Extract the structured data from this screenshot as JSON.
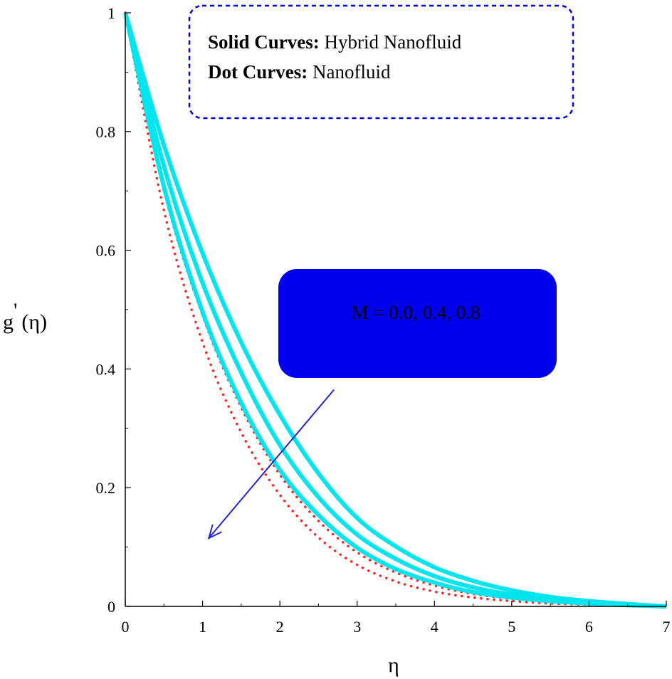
{
  "chart_data": {
    "type": "line",
    "title": "",
    "xlabel": "η",
    "ylabel_main": "g",
    "ylabel_super": "'",
    "ylabel_arg": "(η)",
    "xlim": [
      0,
      7
    ],
    "ylim": [
      0,
      1
    ],
    "x_ticks": [
      "0",
      "1",
      "2",
      "3",
      "4",
      "5",
      "6",
      "7"
    ],
    "y_ticks": [
      "0",
      "0.2",
      "0.4",
      "0.6",
      "0.8",
      "1"
    ],
    "grid": false,
    "legend": {
      "placement": "top-center",
      "line1_bold": "Solid Curves:",
      "line1_text": " Hybrid Nanofluid",
      "line2_bold": "Dot Curves:",
      "line2_text": " Nanofluid"
    },
    "annotation": {
      "text": "M = 0.0, 0.4, 0.8",
      "arrow_from": [
        2.7,
        0.365
      ],
      "arrow_to": [
        1.08,
        0.115
      ]
    },
    "colors": {
      "solid": "#00e5ee",
      "dotted": "#ff2020",
      "annotation_box": "#0000ee",
      "legend_border": "#0000ee",
      "arrow": "#2424d8"
    },
    "series": [
      {
        "style": "solid",
        "x": [
          0,
          0.5,
          1,
          1.5,
          2,
          2.5,
          3,
          3.5,
          4,
          4.5,
          5,
          5.5,
          6,
          6.5,
          7
        ],
        "y": [
          1,
          0.777,
          0.595,
          0.445,
          0.323,
          0.224,
          0.149,
          0.101,
          0.066,
          0.043,
          0.027,
          0.016,
          0.009,
          0.004,
          0
        ]
      },
      {
        "style": "solid",
        "x": [
          0,
          0.5,
          1,
          1.5,
          2,
          2.5,
          3,
          3.5,
          4,
          4.5,
          5,
          5.5,
          6,
          6.5,
          7
        ],
        "y": [
          1,
          0.742,
          0.545,
          0.394,
          0.272,
          0.184,
          0.121,
          0.08,
          0.051,
          0.032,
          0.02,
          0.012,
          0.006,
          0.003,
          0
        ]
      },
      {
        "style": "solid",
        "x": [
          0,
          0.5,
          1,
          1.5,
          2,
          2.5,
          3,
          3.5,
          4,
          4.5,
          5,
          5.5,
          6,
          6.5,
          7
        ],
        "y": [
          1,
          0.707,
          0.496,
          0.343,
          0.23,
          0.154,
          0.099,
          0.063,
          0.04,
          0.024,
          0.015,
          0.009,
          0.005,
          0.002,
          0
        ]
      },
      {
        "style": "dotted",
        "x": [
          0,
          0.5,
          1,
          1.5,
          2,
          2.5,
          3,
          3.5,
          4,
          4.5,
          5,
          5.5,
          6,
          6.5,
          7
        ],
        "y": [
          1,
          0.74,
          0.545,
          0.395,
          0.272,
          0.183,
          0.122,
          0.079,
          0.05,
          0.031,
          0.019,
          0.011,
          0.006,
          0.003,
          0
        ]
      },
      {
        "style": "dotted",
        "x": [
          0,
          0.5,
          1,
          1.5,
          2,
          2.5,
          3,
          3.5,
          4,
          4.5,
          5,
          5.5,
          6,
          6.5,
          7
        ],
        "y": [
          1,
          0.7,
          0.49,
          0.335,
          0.222,
          0.144,
          0.091,
          0.057,
          0.035,
          0.021,
          0.013,
          0.007,
          0.004,
          0.002,
          0
        ]
      },
      {
        "style": "dotted",
        "x": [
          0,
          0.5,
          1,
          1.5,
          2,
          2.5,
          3,
          3.5,
          4,
          4.5,
          5,
          5.5,
          6,
          6.5,
          7
        ],
        "y": [
          1,
          0.667,
          0.445,
          0.293,
          0.188,
          0.116,
          0.07,
          0.042,
          0.025,
          0.015,
          0.009,
          0.005,
          0.003,
          0.001,
          0
        ]
      }
    ]
  }
}
